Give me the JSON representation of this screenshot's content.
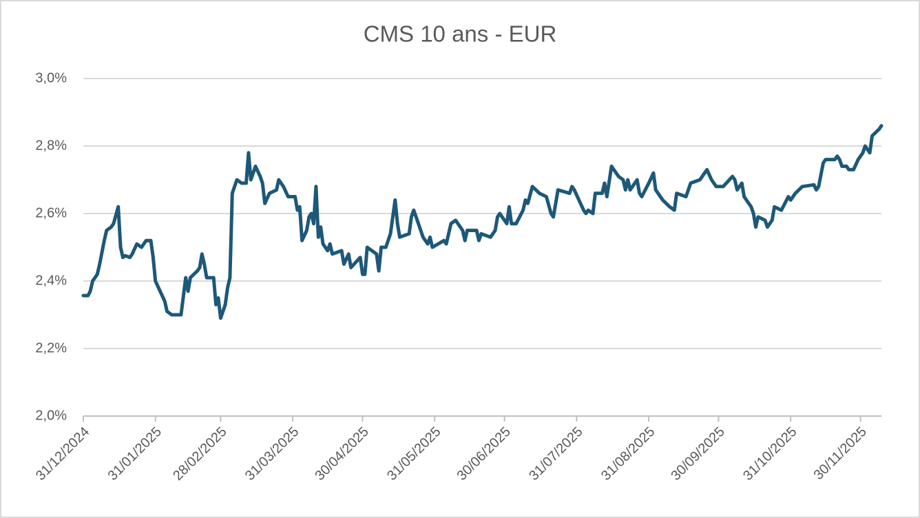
{
  "chart_data": {
    "type": "line",
    "title": "CMS 10 ans - EUR",
    "color": "#1d5878",
    "grid": true,
    "x": [
      "2024-12-31",
      "2025-01-02",
      "2025-01-03",
      "2025-01-04",
      "2025-01-06",
      "2025-01-07",
      "2025-01-09",
      "2025-01-10",
      "2025-01-12",
      "2025-01-13",
      "2025-01-15",
      "2025-01-16",
      "2025-01-17",
      "2025-01-18",
      "2025-01-20",
      "2025-01-21",
      "2025-01-23",
      "2025-01-25",
      "2025-01-27",
      "2025-01-29",
      "2025-01-30",
      "2025-01-31",
      "2025-02-02",
      "2025-02-04",
      "2025-02-05",
      "2025-02-07",
      "2025-02-11",
      "2025-02-13",
      "2025-02-14",
      "2025-02-15",
      "2025-02-18",
      "2025-02-19",
      "2025-02-20",
      "2025-02-21",
      "2025-02-22",
      "2025-02-25",
      "2025-02-26",
      "2025-02-27",
      "2025-02-28",
      "2025-03-02",
      "2025-03-03",
      "2025-03-04",
      "2025-03-05",
      "2025-03-07",
      "2025-03-09",
      "2025-03-11",
      "2025-03-12",
      "2025-03-13",
      "2025-03-15",
      "2025-03-17",
      "2025-03-18",
      "2025-03-19",
      "2025-03-21",
      "2025-03-24",
      "2025-03-25",
      "2025-03-27",
      "2025-03-29",
      "2025-04-01",
      "2025-04-02",
      "2025-04-03",
      "2025-04-04",
      "2025-04-06",
      "2025-04-07",
      "2025-04-08",
      "2025-04-09",
      "2025-04-10",
      "2025-04-11",
      "2025-04-12",
      "2025-04-13",
      "2025-04-15",
      "2025-04-16",
      "2025-04-17",
      "2025-04-21",
      "2025-04-22",
      "2025-04-24",
      "2025-04-25",
      "2025-04-29",
      "2025-04-30",
      "2025-05-01",
      "2025-05-02",
      "2025-05-06",
      "2025-05-07",
      "2025-05-08",
      "2025-05-10",
      "2025-05-12",
      "2025-05-14",
      "2025-05-15",
      "2025-05-16",
      "2025-05-20",
      "2025-05-21",
      "2025-05-22",
      "2025-05-24",
      "2025-05-26",
      "2025-05-28",
      "2025-05-29",
      "2025-05-30",
      "2025-06-04",
      "2025-06-05",
      "2025-06-07",
      "2025-06-09",
      "2025-06-12",
      "2025-06-13",
      "2025-06-14",
      "2025-06-18",
      "2025-06-19",
      "2025-06-20",
      "2025-06-24",
      "2025-06-26",
      "2025-06-27",
      "2025-06-28",
      "2025-06-29",
      "2025-07-01",
      "2025-07-02",
      "2025-07-03",
      "2025-07-05",
      "2025-07-08",
      "2025-07-09",
      "2025-07-10",
      "2025-07-12",
      "2025-07-15",
      "2025-07-18",
      "2025-07-20",
      "2025-07-21",
      "2025-07-23",
      "2025-07-28",
      "2025-07-29",
      "2025-07-30",
      "2025-08-01",
      "2025-08-03",
      "2025-08-04",
      "2025-08-05",
      "2025-08-07",
      "2025-08-08",
      "2025-08-11",
      "2025-08-12",
      "2025-08-13",
      "2025-08-15",
      "2025-08-18",
      "2025-08-20",
      "2025-08-21",
      "2025-08-22",
      "2025-08-23",
      "2025-08-26",
      "2025-08-27",
      "2025-08-28",
      "2025-08-31",
      "2025-09-02",
      "2025-09-03",
      "2025-09-06",
      "2025-09-09",
      "2025-09-11",
      "2025-09-12",
      "2025-09-16",
      "2025-09-18",
      "2025-09-22",
      "2025-09-25",
      "2025-09-27",
      "2025-09-29",
      "2025-10-02",
      "2025-10-06",
      "2025-10-07",
      "2025-10-08",
      "2025-10-10",
      "2025-10-11",
      "2025-10-12",
      "2025-10-14",
      "2025-10-15",
      "2025-10-16",
      "2025-10-17",
      "2025-10-20",
      "2025-10-21",
      "2025-10-23",
      "2025-10-24",
      "2025-10-27",
      "2025-10-30",
      "2025-10-31",
      "2025-11-02",
      "2025-11-05",
      "2025-11-10",
      "2025-11-11",
      "2025-11-12",
      "2025-11-14",
      "2025-11-15",
      "2025-11-19",
      "2025-11-20",
      "2025-11-21",
      "2025-11-22",
      "2025-11-24",
      "2025-11-25",
      "2025-11-27",
      "2025-11-29",
      "2025-12-01",
      "2025-12-02",
      "2025-12-04",
      "2025-12-05",
      "2025-12-08",
      "2025-12-09"
    ],
    "values": [
      2.357,
      2.357,
      2.37,
      2.4,
      2.42,
      2.45,
      2.52,
      2.55,
      2.56,
      2.57,
      2.62,
      2.5,
      2.47,
      2.475,
      2.47,
      2.48,
      2.51,
      2.5,
      2.52,
      2.52,
      2.47,
      2.4,
      2.37,
      2.34,
      2.31,
      2.3,
      2.3,
      2.41,
      2.37,
      2.41,
      2.43,
      2.44,
      2.48,
      2.45,
      2.41,
      2.41,
      2.33,
      2.35,
      2.29,
      2.33,
      2.38,
      2.41,
      2.66,
      2.7,
      2.69,
      2.69,
      2.78,
      2.7,
      2.74,
      2.71,
      2.69,
      2.63,
      2.66,
      2.67,
      2.7,
      2.68,
      2.65,
      2.65,
      2.61,
      2.62,
      2.52,
      2.55,
      2.59,
      2.6,
      2.57,
      2.68,
      2.53,
      2.56,
      2.51,
      2.49,
      2.51,
      2.48,
      2.49,
      2.45,
      2.48,
      2.44,
      2.47,
      2.42,
      2.42,
      2.5,
      2.48,
      2.43,
      2.5,
      2.5,
      2.54,
      2.64,
      2.57,
      2.53,
      2.54,
      2.59,
      2.61,
      2.57,
      2.53,
      2.51,
      2.53,
      2.5,
      2.52,
      2.51,
      2.57,
      2.58,
      2.55,
      2.52,
      2.55,
      2.55,
      2.52,
      2.54,
      2.53,
      2.55,
      2.59,
      2.6,
      2.59,
      2.57,
      2.62,
      2.57,
      2.57,
      2.61,
      2.64,
      2.63,
      2.68,
      2.66,
      2.65,
      2.6,
      2.59,
      2.67,
      2.66,
      2.68,
      2.67,
      2.64,
      2.61,
      2.6,
      2.61,
      2.6,
      2.66,
      2.66,
      2.69,
      2.65,
      2.74,
      2.71,
      2.7,
      2.67,
      2.7,
      2.67,
      2.7,
      2.66,
      2.65,
      2.69,
      2.72,
      2.67,
      2.64,
      2.62,
      2.61,
      2.66,
      2.65,
      2.69,
      2.7,
      2.73,
      2.7,
      2.68,
      2.68,
      2.71,
      2.7,
      2.67,
      2.69,
      2.65,
      2.64,
      2.62,
      2.6,
      2.56,
      2.59,
      2.58,
      2.56,
      2.58,
      2.62,
      2.61,
      2.65,
      2.64,
      2.66,
      2.68,
      2.685,
      2.67,
      2.68,
      2.75,
      2.76,
      2.76,
      2.77,
      2.76,
      2.74,
      2.74,
      2.73,
      2.73,
      2.76,
      2.78,
      2.8,
      2.78,
      2.83,
      2.85,
      2.86
    ],
    "xlim": [
      "2024-12-31",
      "2025-12-09"
    ],
    "xticks": [
      {
        "value": "2024-12-31",
        "label": "31/12/2024"
      },
      {
        "value": "2025-01-31",
        "label": "31/01/2025"
      },
      {
        "value": "2025-02-28",
        "label": "28/02/2025"
      },
      {
        "value": "2025-03-31",
        "label": "31/03/2025"
      },
      {
        "value": "2025-04-30",
        "label": "30/04/2025"
      },
      {
        "value": "2025-05-31",
        "label": "31/05/2025"
      },
      {
        "value": "2025-06-30",
        "label": "30/06/2025"
      },
      {
        "value": "2025-07-31",
        "label": "31/07/2025"
      },
      {
        "value": "2025-08-31",
        "label": "31/08/2025"
      },
      {
        "value": "2025-09-30",
        "label": "30/09/2025"
      },
      {
        "value": "2025-10-31",
        "label": "31/10/2025"
      },
      {
        "value": "2025-11-30",
        "label": "30/11/2025"
      }
    ],
    "ylim": [
      2.0,
      3.0
    ],
    "yticks": [
      {
        "value": 2.0,
        "label": "2,0%"
      },
      {
        "value": 2.2,
        "label": "2,2%"
      },
      {
        "value": 2.4,
        "label": "2,4%"
      },
      {
        "value": 2.6,
        "label": "2,6%"
      },
      {
        "value": 2.8,
        "label": "2,8%"
      },
      {
        "value": 3.0,
        "label": "3,0%"
      }
    ]
  }
}
